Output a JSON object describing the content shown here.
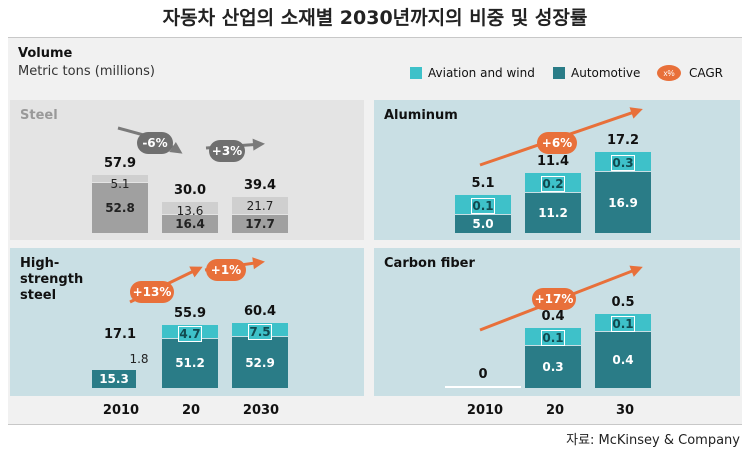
{
  "title": "자동차 산업의 소재별 2030년까지의 비중 및 성장률",
  "volume_title": "Volume",
  "volume_subtitle": "Metric tons (millions)",
  "legend": [
    {
      "label": "Aviation and wind",
      "color": "#3ec1c9"
    },
    {
      "label": "Automotive",
      "color": "#2a7c87"
    },
    {
      "label": "CAGR",
      "color": "#e8703a",
      "badge_text": "x%"
    }
  ],
  "x_labels_left": [
    "2010",
    "20",
    "2030"
  ],
  "x_labels_right": [
    "2010",
    "20",
    "30"
  ],
  "source": "자료: McKinsey & Company",
  "chart_data": [
    {
      "type": "bar",
      "stacked": true,
      "title": "Steel",
      "categories": [
        "2010",
        "20",
        "2030"
      ],
      "series": [
        {
          "name": "Automotive",
          "values": [
            52.8,
            16.4,
            17.7
          ]
        },
        {
          "name": "Aviation and wind",
          "values": [
            5.1,
            13.6,
            21.7
          ]
        }
      ],
      "totals": [
        57.9,
        30.0,
        39.4
      ],
      "cagr": [
        "-6%",
        "+3%"
      ]
    },
    {
      "type": "bar",
      "stacked": true,
      "title": "Aluminum",
      "categories": [
        "2010",
        "20",
        "30"
      ],
      "series": [
        {
          "name": "Automotive",
          "values": [
            5.0,
            11.2,
            16.9
          ]
        },
        {
          "name": "Aviation and wind",
          "values": [
            0.1,
            0.2,
            0.3
          ]
        }
      ],
      "totals": [
        5.1,
        11.4,
        17.2
      ],
      "cagr": [
        "+6%"
      ]
    },
    {
      "type": "bar",
      "stacked": true,
      "title": "High-strength steel",
      "categories": [
        "2010",
        "20",
        "2030"
      ],
      "series": [
        {
          "name": "Automotive",
          "values": [
            15.3,
            51.2,
            52.9
          ]
        },
        {
          "name": "Aviation and wind",
          "values": [
            1.8,
            4.7,
            7.5
          ]
        }
      ],
      "totals": [
        17.1,
        55.9,
        60.4
      ],
      "cagr": [
        "+13%",
        "+1%"
      ]
    },
    {
      "type": "bar",
      "stacked": true,
      "title": "Carbon fiber",
      "categories": [
        "2010",
        "20",
        "30"
      ],
      "series": [
        {
          "name": "Automotive",
          "values": [
            0,
            0.3,
            0.4
          ]
        },
        {
          "name": "Aviation and wind",
          "values": [
            0,
            0.1,
            0.1
          ]
        }
      ],
      "totals": [
        0,
        0.4,
        0.5
      ],
      "cagr": [
        "+17%"
      ]
    }
  ]
}
